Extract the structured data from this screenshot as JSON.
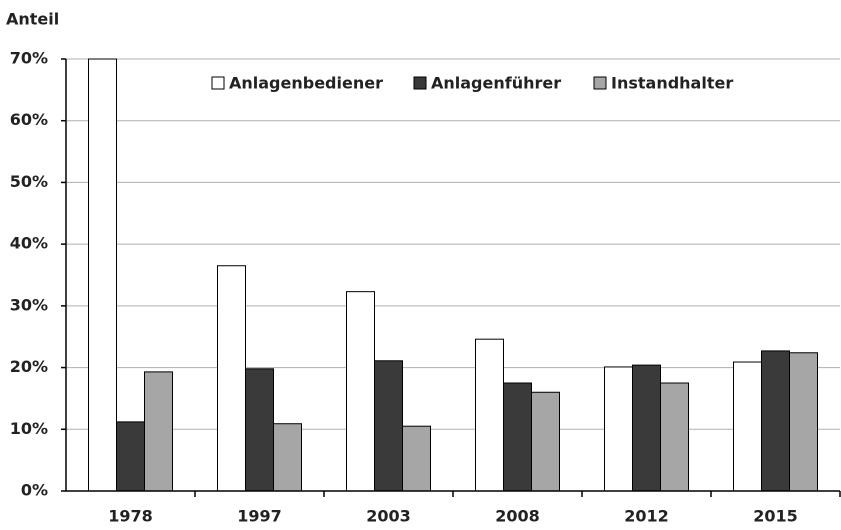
{
  "chart_data": {
    "type": "bar",
    "y_label": "Anteil",
    "categories": [
      "1978",
      "1997",
      "2003",
      "2008",
      "2012",
      "2015"
    ],
    "series": [
      {
        "name": "Anlagenbediener",
        "color": "#ffffff",
        "values": [
          70,
          36.5,
          32.3,
          24.6,
          20.1,
          20.9
        ]
      },
      {
        "name": "Anlagenführer",
        "color": "#3a3a3a",
        "values": [
          11.2,
          19.8,
          21.1,
          17.5,
          20.4,
          22.7
        ]
      },
      {
        "name": "Instandhalter",
        "color": "#a6a6a6",
        "values": [
          19.3,
          10.9,
          10.5,
          16,
          17.5,
          22.4
        ]
      }
    ],
    "ylim": [
      0,
      70
    ],
    "yticks": [
      {
        "value": 0,
        "label": "0%"
      },
      {
        "value": 10,
        "label": "10%"
      },
      {
        "value": 20,
        "label": "20%"
      },
      {
        "value": 30,
        "label": "30%"
      },
      {
        "value": 40,
        "label": "40%"
      },
      {
        "value": 50,
        "label": "50%"
      },
      {
        "value": 60,
        "label": "60%"
      },
      {
        "value": 70,
        "label": "70%"
      }
    ],
    "grid": true,
    "legend": "top"
  }
}
